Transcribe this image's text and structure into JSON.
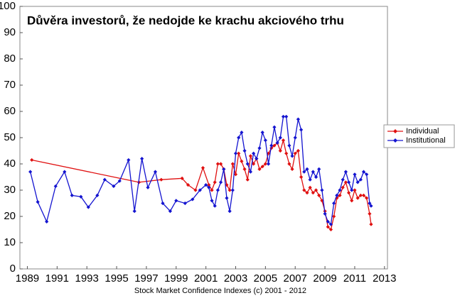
{
  "chart_data": {
    "type": "line",
    "title": "Důvěra investorů, že nedojde ke krachu akciového trhu",
    "footer": "Stock Market Confidence Indexes (c) 2001 - 2012",
    "xlim": [
      1988.5,
      2013.2
    ],
    "xticks": [
      1989,
      1991,
      1993,
      1995,
      1997,
      1999,
      2001,
      2003,
      2005,
      2007,
      2009,
      2011,
      2013
    ],
    "ylim": [
      0,
      100
    ],
    "yticks": [
      0,
      10,
      20,
      30,
      40,
      50,
      60,
      70,
      80,
      90,
      100
    ],
    "legend": "right",
    "series": [
      {
        "name": "Individual",
        "color": "#e01010",
        "x": [
          1989.3,
          1996.5,
          1998,
          1999.4,
          1999.8,
          2000.3,
          2000.8,
          2001.2,
          2001.4,
          2001.6,
          2001.8,
          2002.0,
          2002.2,
          2002.4,
          2002.6,
          2002.8,
          2003.0,
          2003.2,
          2003.4,
          2003.6,
          2003.8,
          2004.0,
          2004.2,
          2004.4,
          2004.6,
          2004.8,
          2005.0,
          2005.2,
          2005.4,
          2005.6,
          2005.8,
          2006.0,
          2006.2,
          2006.4,
          2006.6,
          2006.8,
          2007.0,
          2007.2,
          2007.4,
          2007.6,
          2007.8,
          2008.0,
          2008.2,
          2008.4,
          2008.6,
          2008.8,
          2009.0,
          2009.2,
          2009.4,
          2009.6,
          2009.8,
          2010.0,
          2010.2,
          2010.4,
          2010.6,
          2010.8,
          2011.0,
          2011.2,
          2011.4,
          2011.6,
          2011.8,
          2012.0,
          2012.1
        ],
        "values": [
          41.5,
          33,
          34,
          34.5,
          32,
          30,
          38.5,
          32,
          30,
          33,
          40,
          40,
          38,
          32,
          30,
          40,
          36,
          44,
          41,
          38,
          34,
          43,
          40,
          42,
          38,
          39,
          40,
          44,
          46,
          47,
          48,
          45,
          49,
          44,
          40,
          38,
          44,
          45,
          35,
          30,
          29,
          31,
          29,
          30,
          28,
          26,
          22,
          16,
          15,
          20,
          27,
          28,
          31,
          33,
          29,
          26,
          30,
          27,
          28,
          28,
          27,
          21,
          17
        ]
      },
      {
        "name": "Institutional",
        "color": "#1414d0",
        "x": [
          1989.2,
          1989.7,
          1990.3,
          1990.9,
          1991.5,
          1992.0,
          1992.6,
          1993.1,
          1993.7,
          1994.2,
          1994.8,
          1995.2,
          1995.8,
          1996.2,
          1996.7,
          1997.1,
          1997.6,
          1998.1,
          1998.6,
          1999.0,
          1999.6,
          2000.1,
          2000.6,
          2001.0,
          2001.2,
          2001.4,
          2001.6,
          2001.8,
          2002.0,
          2002.2,
          2002.4,
          2002.6,
          2002.8,
          2003.0,
          2003.2,
          2003.4,
          2003.6,
          2003.8,
          2004.0,
          2004.2,
          2004.4,
          2004.6,
          2004.8,
          2005.0,
          2005.2,
          2005.4,
          2005.6,
          2005.8,
          2006.0,
          2006.2,
          2006.4,
          2006.6,
          2006.8,
          2007.0,
          2007.2,
          2007.4,
          2007.6,
          2007.8,
          2008.0,
          2008.2,
          2008.4,
          2008.6,
          2008.8,
          2009.0,
          2009.2,
          2009.4,
          2009.6,
          2009.8,
          2010.0,
          2010.2,
          2010.4,
          2010.6,
          2010.8,
          2011.0,
          2011.2,
          2011.4,
          2011.6,
          2011.8,
          2012.0,
          2012.1
        ],
        "values": [
          37,
          25.5,
          18,
          31.5,
          37,
          28,
          27.5,
          23.5,
          28,
          34,
          31.5,
          33.5,
          41.5,
          22,
          42,
          31,
          37,
          25,
          22,
          26,
          25,
          26.5,
          30,
          32,
          31,
          26,
          24,
          30,
          33,
          38,
          27,
          22,
          30,
          44,
          50,
          52,
          45,
          40,
          37,
          44,
          42,
          46,
          52,
          49,
          40,
          47,
          54,
          48,
          50,
          58,
          58,
          47,
          43,
          50,
          57,
          53,
          37,
          38,
          34,
          37,
          35,
          38,
          30,
          21,
          18,
          17,
          25,
          28,
          30,
          34,
          37,
          33,
          30,
          36,
          33,
          34,
          37,
          36,
          25,
          24
        ]
      }
    ]
  }
}
